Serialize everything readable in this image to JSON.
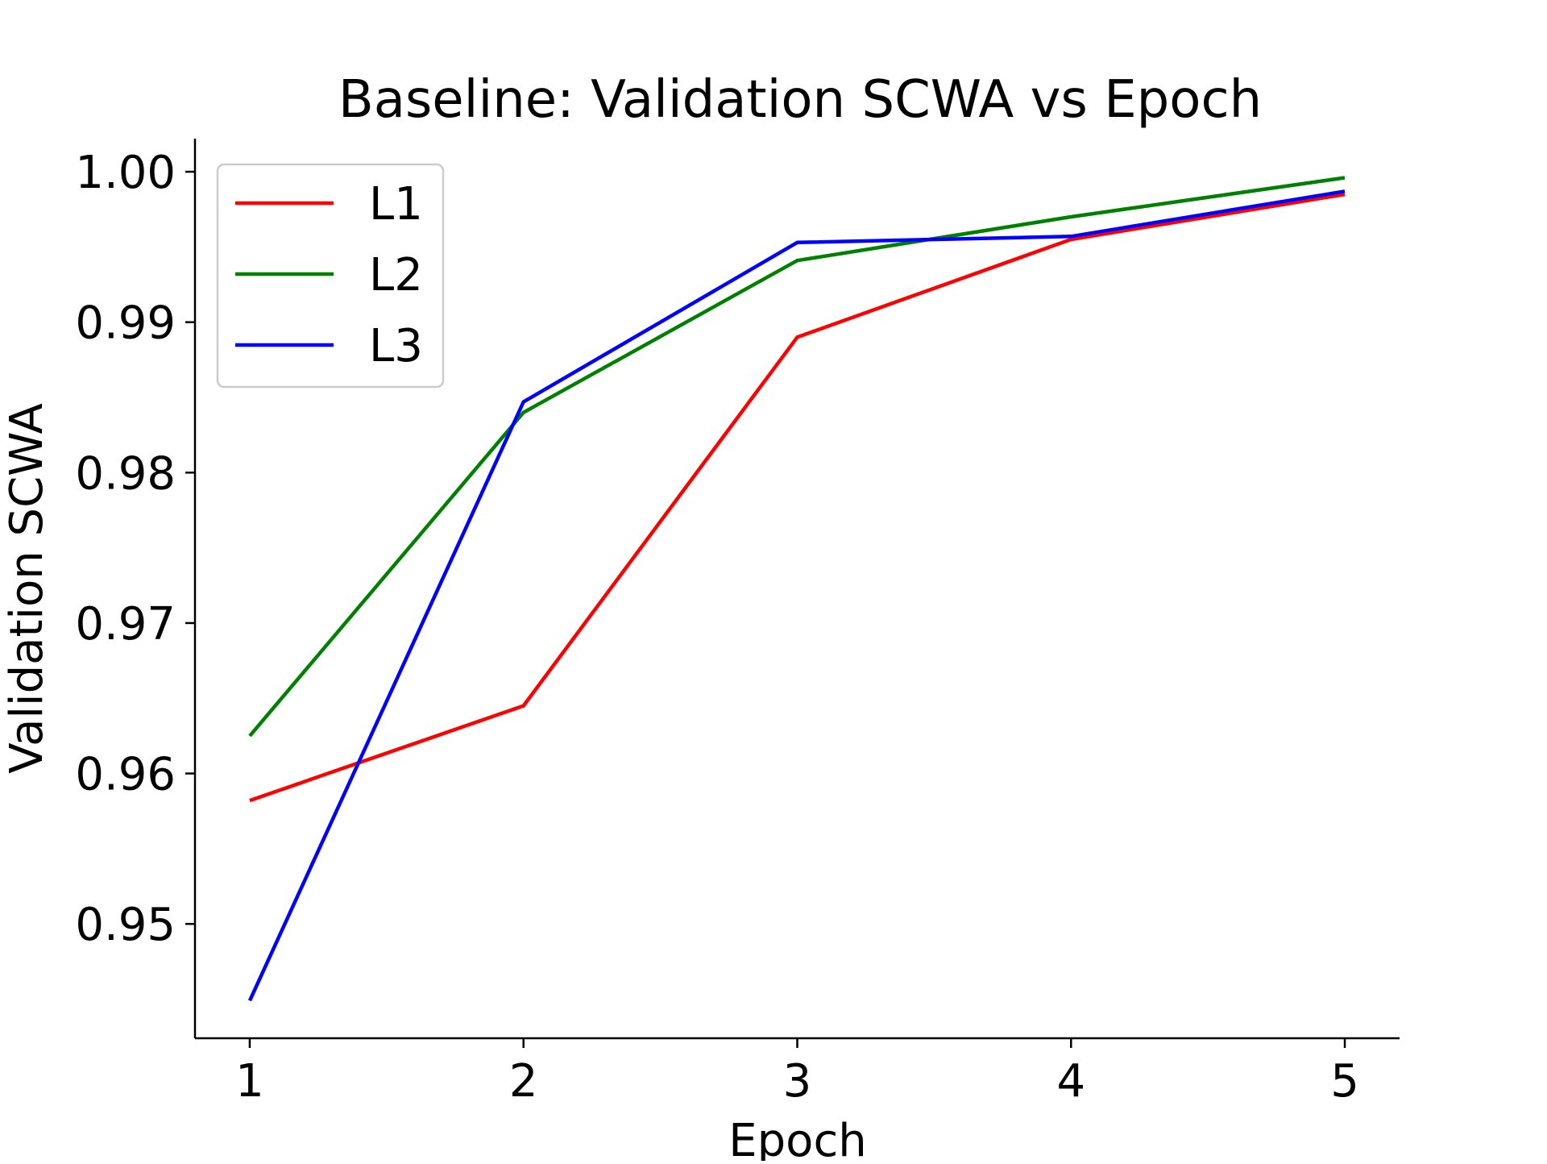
{
  "chart_data": {
    "type": "line",
    "title": "Baseline: Validation SCWA vs Epoch",
    "xlabel": "Epoch",
    "ylabel": "Validation SCWA",
    "x": [
      1,
      2,
      3,
      4,
      5
    ],
    "x_ticks": [
      "1",
      "2",
      "3",
      "4",
      "5"
    ],
    "y_ticks": [
      "0.95",
      "0.96",
      "0.97",
      "0.98",
      "0.99",
      "1.00"
    ],
    "xlim": [
      0.8,
      5.2
    ],
    "ylim": [
      0.9424,
      1.0022
    ],
    "grid": false,
    "legend_position": "upper-left",
    "series": [
      {
        "name": "L1",
        "color": "#ff0000",
        "values": [
          0.9582,
          0.9645,
          0.989,
          0.9955,
          0.9985
        ]
      },
      {
        "name": "L2",
        "color": "#008000",
        "values": [
          0.9625,
          0.984,
          0.9941,
          0.997,
          0.9996
        ]
      },
      {
        "name": "L3",
        "color": "#0000ff",
        "values": [
          0.9449,
          0.9847,
          0.9953,
          0.9957,
          0.9987
        ]
      }
    ]
  }
}
